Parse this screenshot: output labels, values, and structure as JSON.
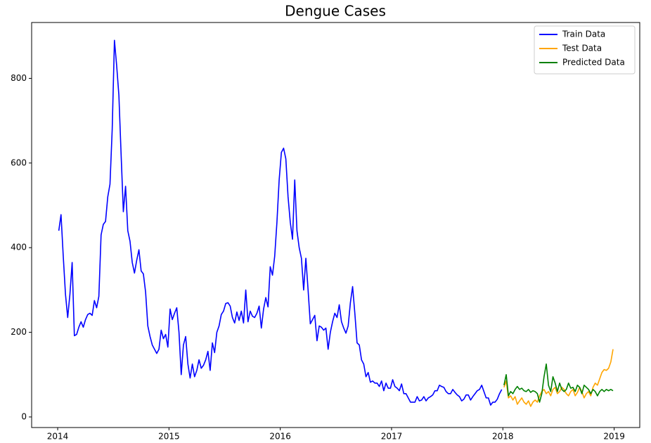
{
  "chart_data": {
    "type": "line",
    "title": "Dengue Cases",
    "xlim": [
      2013.766,
      2019.23
    ],
    "xticks": [
      2014,
      2015,
      2016,
      2017,
      2018,
      2019
    ],
    "ylim": [
      -25,
      932
    ],
    "yticks": [
      0,
      200,
      400,
      600,
      800
    ],
    "grid": false,
    "legend": "upper right",
    "series": [
      {
        "name": "Train Data",
        "color": "#0000ff",
        "x": [
          2014.01,
          2014.03,
          2014.05,
          2014.07,
          2014.09,
          2014.11,
          2014.13,
          2014.15,
          2014.17,
          2014.19,
          2014.21,
          2014.23,
          2014.25,
          2014.27,
          2014.29,
          2014.31,
          2014.33,
          2014.35,
          2014.37,
          2014.39,
          2014.41,
          2014.43,
          2014.45,
          2014.47,
          2014.49,
          2014.51,
          2014.53,
          2014.55,
          2014.57,
          2014.59,
          2014.61,
          2014.63,
          2014.65,
          2014.67,
          2014.69,
          2014.71,
          2014.73,
          2014.75,
          2014.77,
          2014.79,
          2014.81,
          2014.83,
          2014.85,
          2014.87,
          2014.89,
          2014.91,
          2014.93,
          2014.95,
          2014.97,
          2014.99,
          2015.01,
          2015.03,
          2015.05,
          2015.07,
          2015.09,
          2015.11,
          2015.13,
          2015.15,
          2015.17,
          2015.19,
          2015.21,
          2015.23,
          2015.25,
          2015.27,
          2015.29,
          2015.31,
          2015.33,
          2015.35,
          2015.37,
          2015.39,
          2015.41,
          2015.43,
          2015.45,
          2015.47,
          2015.49,
          2015.51,
          2015.53,
          2015.55,
          2015.57,
          2015.59,
          2015.61,
          2015.63,
          2015.65,
          2015.67,
          2015.69,
          2015.71,
          2015.73,
          2015.75,
          2015.77,
          2015.79,
          2015.81,
          2015.83,
          2015.85,
          2015.87,
          2015.89,
          2015.91,
          2015.93,
          2015.95,
          2015.97,
          2015.99,
          2016.01,
          2016.03,
          2016.05,
          2016.07,
          2016.09,
          2016.11,
          2016.13,
          2016.15,
          2016.17,
          2016.19,
          2016.21,
          2016.23,
          2016.25,
          2016.27,
          2016.29,
          2016.31,
          2016.33,
          2016.35,
          2016.37,
          2016.39,
          2016.41,
          2016.43,
          2016.45,
          2016.47,
          2016.49,
          2016.51,
          2016.53,
          2016.55,
          2016.57,
          2016.59,
          2016.61,
          2016.63,
          2016.65,
          2016.67,
          2016.69,
          2016.71,
          2016.73,
          2016.75,
          2016.77,
          2016.79,
          2016.81,
          2016.83,
          2016.85,
          2016.87,
          2016.89,
          2016.91,
          2016.93,
          2016.95,
          2016.97,
          2016.99,
          2017.01,
          2017.03,
          2017.05,
          2017.07,
          2017.09,
          2017.11,
          2017.13,
          2017.15,
          2017.17,
          2017.19,
          2017.21,
          2017.23,
          2017.25,
          2017.27,
          2017.29,
          2017.31,
          2017.33,
          2017.35,
          2017.37,
          2017.39,
          2017.41,
          2017.43,
          2017.45,
          2017.47,
          2017.49,
          2017.51,
          2017.53,
          2017.55,
          2017.57,
          2017.59,
          2017.61,
          2017.63,
          2017.65,
          2017.67,
          2017.69,
          2017.71,
          2017.73,
          2017.75,
          2017.77,
          2017.79,
          2017.81,
          2017.83,
          2017.85,
          2017.87,
          2017.89,
          2017.91,
          2017.93,
          2017.95,
          2017.97,
          2017.99
        ],
        "values": [
          440,
          478,
          380,
          290,
          235,
          290,
          365,
          192,
          195,
          212,
          225,
          212,
          230,
          242,
          245,
          240,
          275,
          258,
          285,
          430,
          455,
          462,
          520,
          550,
          680,
          890,
          830,
          760,
          620,
          485,
          545,
          440,
          415,
          365,
          340,
          370,
          395,
          345,
          338,
          295,
          215,
          190,
          170,
          160,
          150,
          160,
          205,
          185,
          195,
          165,
          255,
          230,
          245,
          258,
          200,
          100,
          170,
          190,
          125,
          92,
          125,
          95,
          110,
          135,
          115,
          122,
          135,
          155,
          110,
          175,
          152,
          200,
          215,
          242,
          250,
          268,
          270,
          262,
          235,
          222,
          248,
          228,
          250,
          222,
          300,
          225,
          250,
          238,
          235,
          245,
          262,
          210,
          255,
          282,
          260,
          355,
          335,
          380,
          460,
          560,
          625,
          635,
          610,
          520,
          460,
          420,
          560,
          440,
          400,
          375,
          300,
          375,
          300,
          220,
          230,
          240,
          180,
          215,
          212,
          205,
          210,
          160,
          200,
          225,
          245,
          235,
          265,
          225,
          210,
          198,
          215,
          270,
          308,
          245,
          175,
          170,
          135,
          125,
          95,
          105,
          82,
          85,
          80,
          80,
          72,
          85,
          62,
          80,
          68,
          68,
          88,
          72,
          68,
          62,
          78,
          55,
          55,
          45,
          35,
          35,
          35,
          48,
          38,
          40,
          48,
          38,
          45,
          48,
          52,
          62,
          62,
          75,
          72,
          70,
          60,
          55,
          55,
          65,
          58,
          52,
          48,
          38,
          42,
          52,
          52,
          40,
          48,
          55,
          62,
          65,
          75,
          60,
          45,
          45,
          28,
          35,
          35,
          42,
          55,
          65
        ]
      },
      {
        "name": "Test Data",
        "color": "#ffa500",
        "x": [
          2018.01,
          2018.03,
          2018.05,
          2018.07,
          2018.09,
          2018.11,
          2018.13,
          2018.15,
          2018.17,
          2018.19,
          2018.21,
          2018.23,
          2018.25,
          2018.27,
          2018.29,
          2018.31,
          2018.33,
          2018.35,
          2018.37,
          2018.39,
          2018.41,
          2018.43,
          2018.45,
          2018.47,
          2018.49,
          2018.51,
          2018.53,
          2018.55,
          2018.57,
          2018.59,
          2018.61,
          2018.63,
          2018.65,
          2018.67,
          2018.69,
          2018.71,
          2018.73,
          2018.75,
          2018.77,
          2018.79,
          2018.81,
          2018.83,
          2018.85,
          2018.87,
          2018.89,
          2018.91,
          2018.93,
          2018.95,
          2018.97,
          2018.99
        ],
        "values": [
          70,
          85,
          45,
          50,
          40,
          48,
          30,
          38,
          45,
          35,
          30,
          38,
          25,
          35,
          40,
          35,
          50,
          60,
          65,
          55,
          60,
          50,
          65,
          70,
          55,
          60,
          70,
          65,
          55,
          50,
          60,
          65,
          50,
          58,
          70,
          60,
          45,
          55,
          60,
          50,
          70,
          80,
          75,
          90,
          105,
          112,
          110,
          115,
          130,
          160
        ]
      },
      {
        "name": "Predicted Data",
        "color": "#008000",
        "x": [
          2018.01,
          2018.03,
          2018.05,
          2018.07,
          2018.09,
          2018.11,
          2018.13,
          2018.15,
          2018.17,
          2018.19,
          2018.21,
          2018.23,
          2018.25,
          2018.27,
          2018.29,
          2018.31,
          2018.33,
          2018.35,
          2018.37,
          2018.39,
          2018.41,
          2018.43,
          2018.45,
          2018.47,
          2018.49,
          2018.51,
          2018.53,
          2018.55,
          2018.57,
          2018.59,
          2018.61,
          2018.63,
          2018.65,
          2018.67,
          2018.69,
          2018.71,
          2018.73,
          2018.75,
          2018.77,
          2018.79,
          2018.81,
          2018.83,
          2018.85,
          2018.87,
          2018.89,
          2018.91,
          2018.93,
          2018.95,
          2018.97,
          2018.99
        ],
        "values": [
          75,
          100,
          50,
          60,
          55,
          65,
          72,
          65,
          68,
          62,
          60,
          65,
          58,
          62,
          60,
          55,
          35,
          55,
          95,
          125,
          75,
          60,
          95,
          80,
          60,
          80,
          65,
          60,
          65,
          80,
          68,
          70,
          60,
          75,
          70,
          55,
          75,
          70,
          65,
          55,
          65,
          60,
          50,
          60,
          65,
          60,
          65,
          62,
          65,
          62
        ]
      }
    ]
  }
}
